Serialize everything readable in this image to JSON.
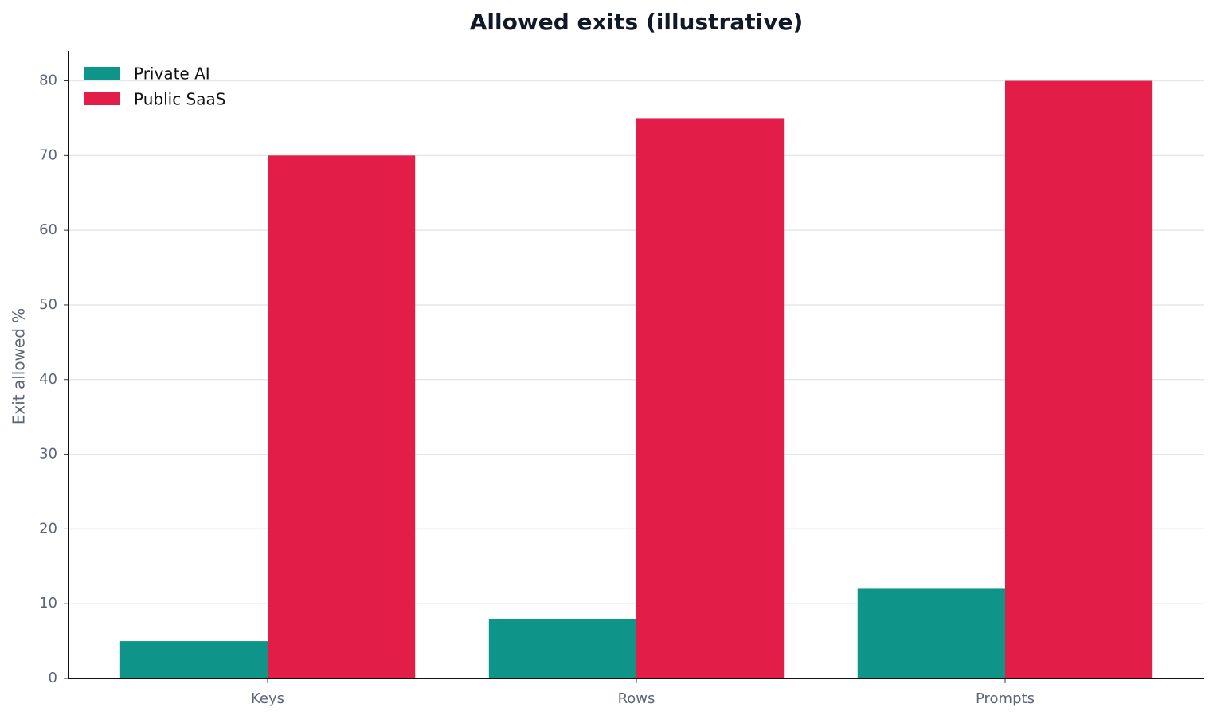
{
  "chart_data": {
    "type": "bar",
    "title": "Allowed exits (illustrative)",
    "ylabel": "Exit allowed %",
    "categories": [
      "Keys",
      "Rows",
      "Prompts"
    ],
    "series": [
      {
        "name": "Private AI",
        "color": "#0e9488",
        "values": [
          5,
          8,
          12
        ]
      },
      {
        "name": "Public SaaS",
        "color": "#e11d48",
        "values": [
          70,
          75,
          80
        ]
      }
    ],
    "ylim": [
      0,
      84
    ],
    "yticks": [
      0,
      10,
      20,
      30,
      40,
      50,
      60,
      70,
      80
    ],
    "grid": true,
    "legend": "upper left"
  }
}
